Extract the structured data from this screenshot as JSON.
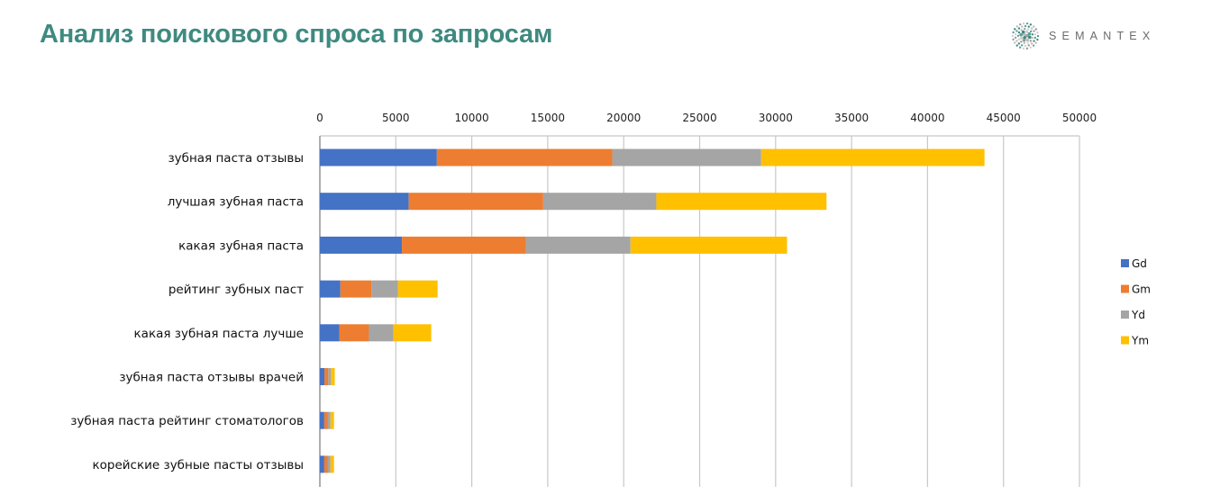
{
  "header": {
    "title": "Анализ поискового спроса по запросам",
    "logo_text": "SEMANTEX",
    "logo_icon": "dotted-sphere-icon"
  },
  "colors": {
    "title": "#3f8a80",
    "Gd": "#4472c4",
    "Gm": "#ed7d31",
    "Yd": "#a5a5a5",
    "Ym": "#ffc000",
    "grid": "#c8c8c8"
  },
  "chart_data": {
    "type": "bar",
    "orientation": "horizontal",
    "stacked": true,
    "title": "",
    "xlabel": "",
    "ylabel": "",
    "xlim": [
      0,
      50000
    ],
    "x_ticks": [
      0,
      5000,
      10000,
      15000,
      20000,
      25000,
      30000,
      35000,
      40000,
      45000,
      50000
    ],
    "x_tick_labels": [
      "0",
      "5000",
      "10000",
      "15000",
      "20000",
      "25000",
      "30000",
      "35000",
      "40000",
      "45000",
      "50000"
    ],
    "x_axis_position": "top",
    "grid": true,
    "legend_position": "right",
    "categories": [
      "зубная паста отзывы",
      "лучшая зубная паста",
      "какая зубная паста",
      "рейтинг зубных паст",
      "какая зубная паста лучше",
      "зубная паста отзывы врачей",
      "зубная паста рейтинг стоматологов",
      "корейские зубные пасты отзывы"
    ],
    "series": [
      {
        "name": "Gd",
        "values": [
          7700,
          5850,
          5400,
          1350,
          1280,
          300,
          290,
          290
        ]
      },
      {
        "name": "Gm",
        "values": [
          11550,
          8850,
          8150,
          2050,
          1950,
          250,
          240,
          240
        ]
      },
      {
        "name": "Yd",
        "values": [
          9800,
          7450,
          6900,
          1750,
          1600,
          180,
          170,
          170
        ]
      },
      {
        "name": "Ym",
        "values": [
          14700,
          11200,
          10300,
          2600,
          2500,
          250,
          230,
          230
        ]
      }
    ]
  }
}
